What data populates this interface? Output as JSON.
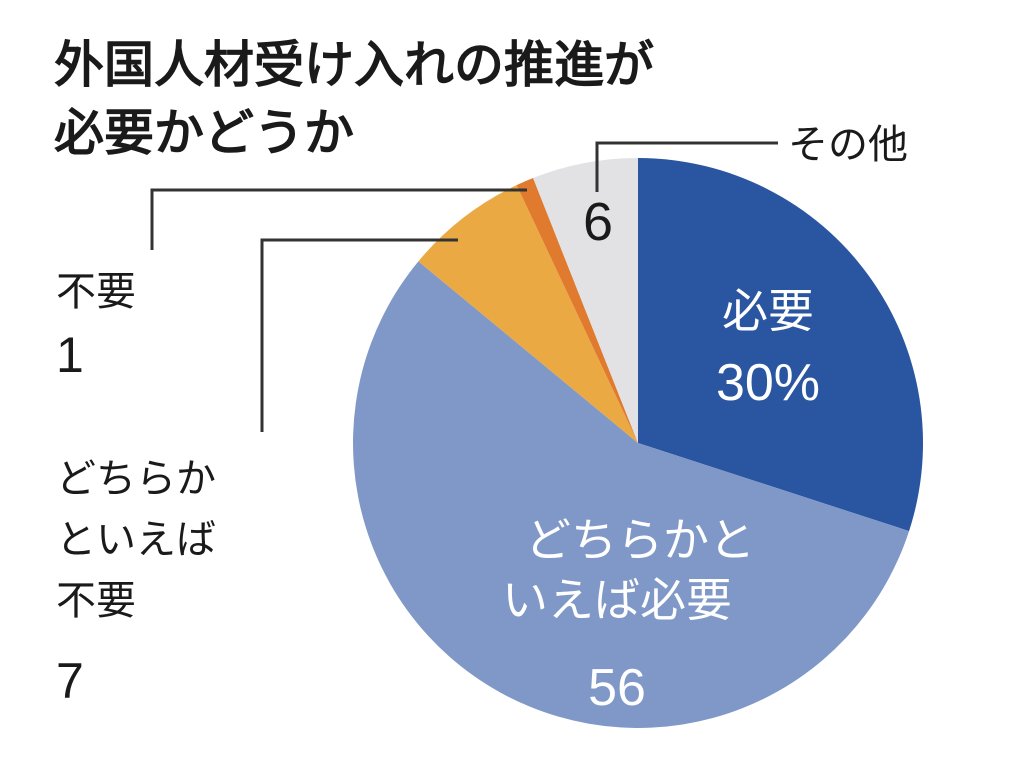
{
  "chart_data": {
    "type": "pie",
    "title_lines": [
      "外国人材受け入れの推進が",
      "必要かどうか"
    ],
    "slices": [
      {
        "name": "必要",
        "value": 30,
        "value_label": "30%",
        "color": "#2a55a0"
      },
      {
        "name": "どちらかといえば必要",
        "name_lines": [
          "どちらかと",
          "いえば必要"
        ],
        "value": 56,
        "value_label": "56",
        "color": "#7f98c8"
      },
      {
        "name": "どちらかといえば不要",
        "name_lines": [
          "どちらか",
          "といえば",
          "不要"
        ],
        "value": 7,
        "value_label": "7",
        "color": "#eaa942"
      },
      {
        "name": "不要",
        "name_lines": [
          "不要"
        ],
        "value": 1,
        "value_label": "1",
        "color": "#e07a2e"
      },
      {
        "name": "その他",
        "name_lines": [
          "その他"
        ],
        "value": 6,
        "value_label": "6",
        "color": "#e2e2e4"
      }
    ],
    "start_direction": "12 o'clock",
    "rotation": "clockwise",
    "unit": "%"
  }
}
